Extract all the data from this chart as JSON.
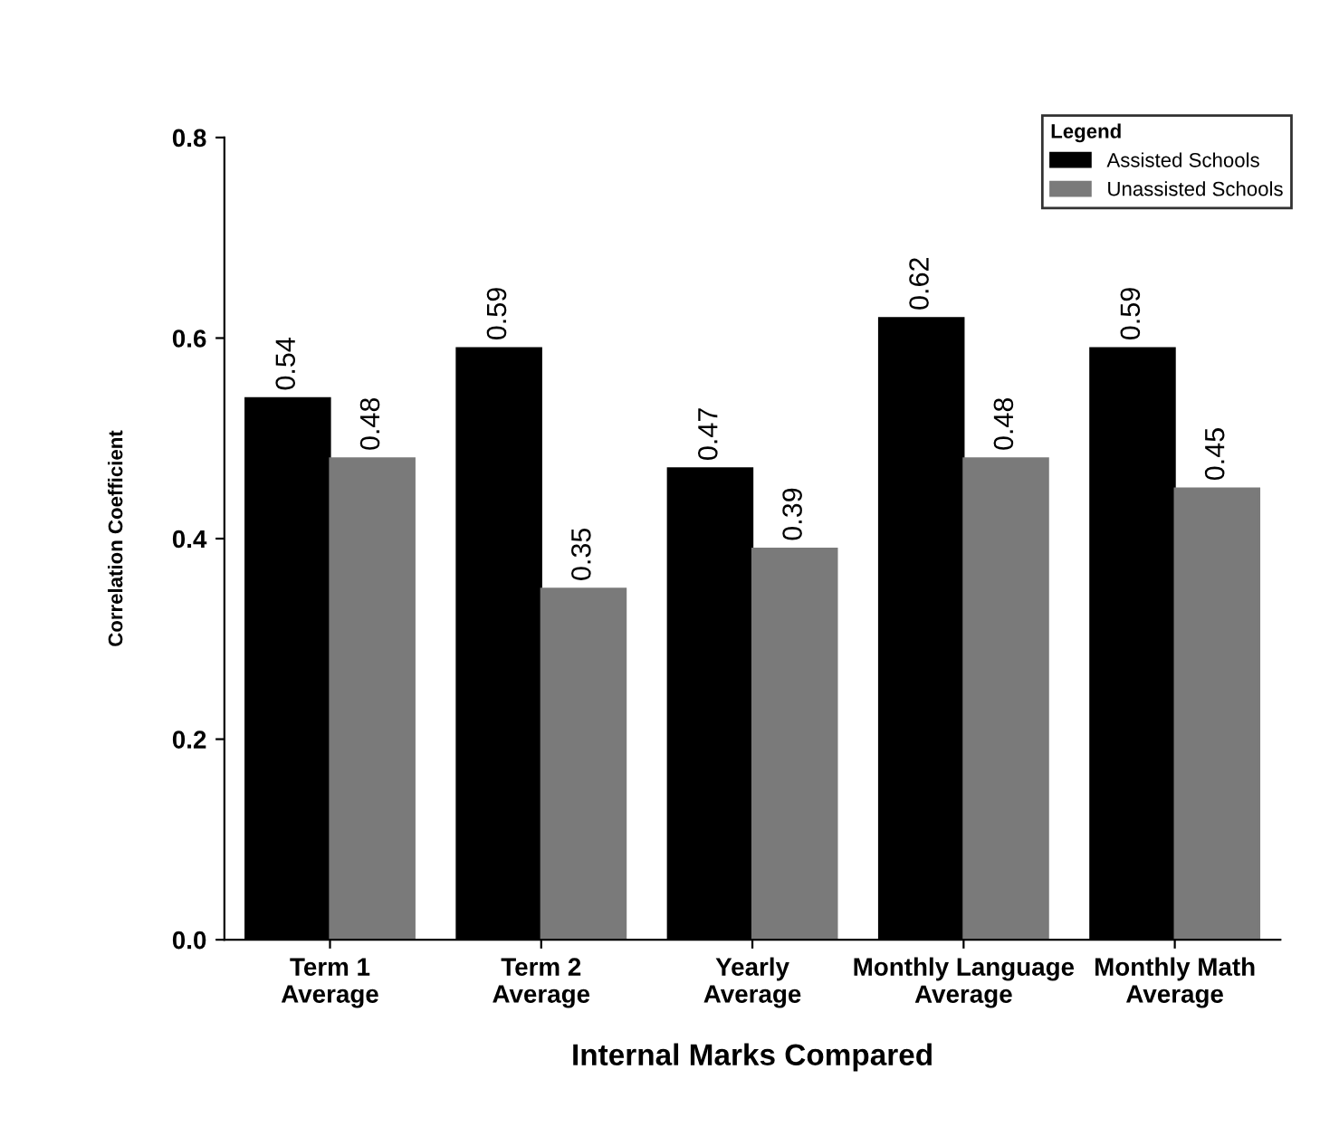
{
  "chart_data": {
    "type": "bar",
    "xlabel": "Internal Marks Compared",
    "ylabel": "Correlation Coefficient",
    "legend_title": "Legend",
    "categories": [
      "Term 1\nAverage",
      "Term 2\nAverage",
      "Yearly\nAverage",
      "Monthly Language\nAverage",
      "Monthly Math\nAverage"
    ],
    "series": [
      {
        "name": "Assisted Schools",
        "color": "#000000",
        "values": [
          0.54,
          0.59,
          0.47,
          0.62,
          0.59
        ]
      },
      {
        "name": "Unassisted Schools",
        "color": "#7a7a7a",
        "values": [
          0.48,
          0.35,
          0.39,
          0.48,
          0.45
        ]
      }
    ],
    "ylim": [
      0,
      0.8
    ],
    "yticks": [
      {
        "value": 0,
        "label": "0.0"
      },
      0.2,
      0.4,
      0.6,
      0.8
    ],
    "data_labels": true,
    "legend": "top right",
    "grid": false
  }
}
